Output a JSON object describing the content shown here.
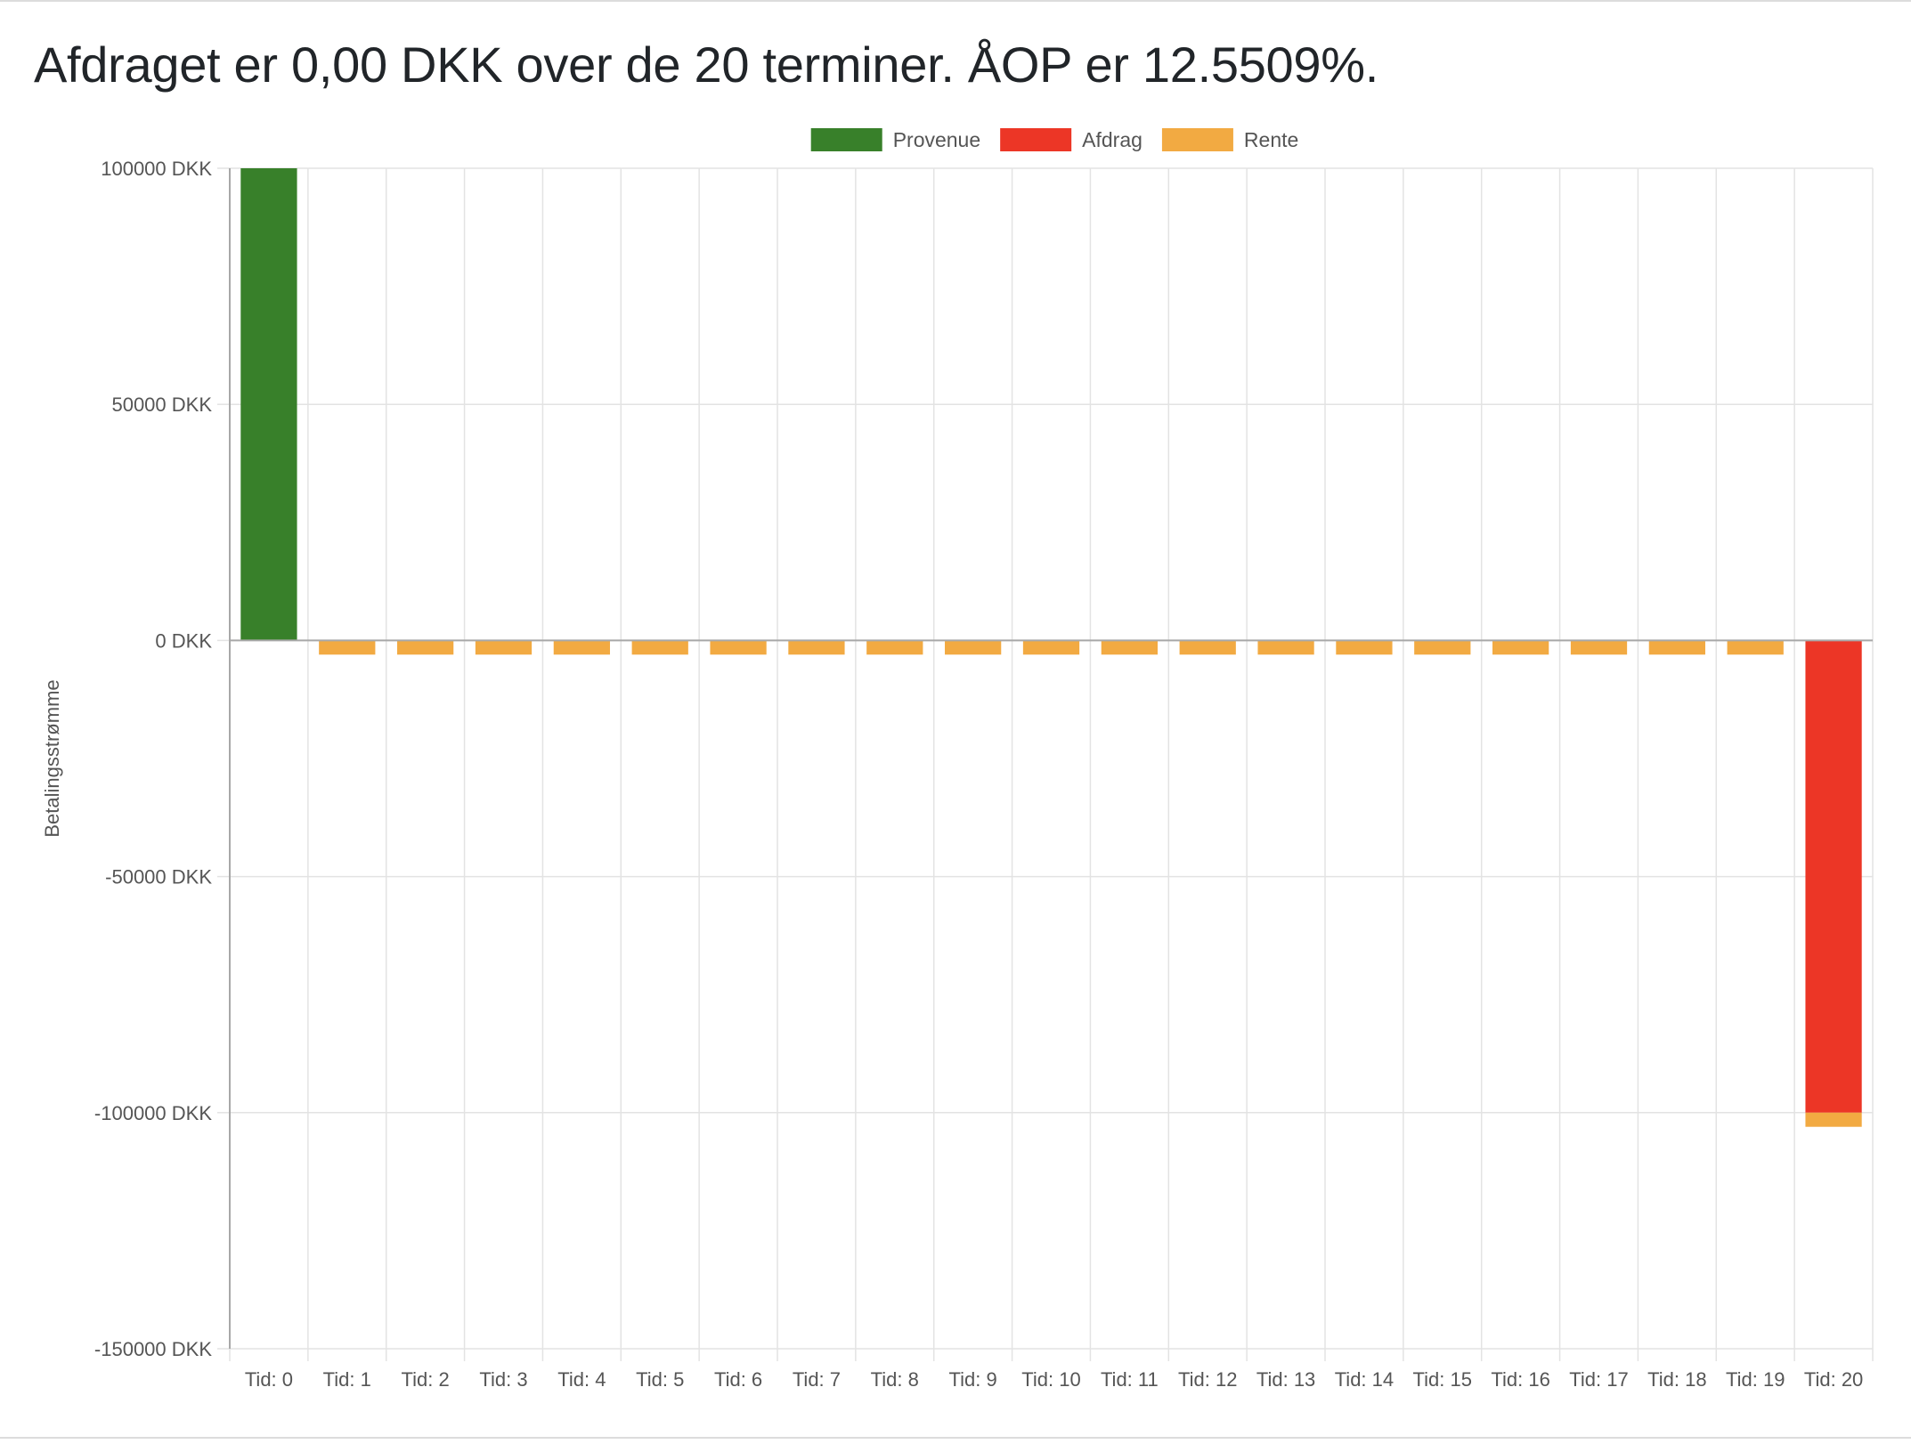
{
  "page": {
    "title": "Afdraget er 0,00 DKK over de 20 terminer. ÅOP er 12.5509%."
  },
  "chart_data": {
    "type": "bar",
    "stacked": true,
    "categories": [
      "Tid: 0",
      "Tid: 1",
      "Tid: 2",
      "Tid: 3",
      "Tid: 4",
      "Tid: 5",
      "Tid: 6",
      "Tid: 7",
      "Tid: 8",
      "Tid: 9",
      "Tid: 10",
      "Tid: 11",
      "Tid: 12",
      "Tid: 13",
      "Tid: 14",
      "Tid: 15",
      "Tid: 16",
      "Tid: 17",
      "Tid: 18",
      "Tid: 19",
      "Tid: 20"
    ],
    "series": [
      {
        "name": "Provenue",
        "color": "#38802a",
        "values": [
          100000,
          0,
          0,
          0,
          0,
          0,
          0,
          0,
          0,
          0,
          0,
          0,
          0,
          0,
          0,
          0,
          0,
          0,
          0,
          0,
          0
        ]
      },
      {
        "name": "Afdrag",
        "color": "#ec3626",
        "values": [
          0,
          0,
          0,
          0,
          0,
          0,
          0,
          0,
          0,
          0,
          0,
          0,
          0,
          0,
          0,
          0,
          0,
          0,
          0,
          0,
          -100000
        ]
      },
      {
        "name": "Rente",
        "color": "#f2aa42",
        "values": [
          0,
          -3000,
          -3000,
          -3000,
          -3000,
          -3000,
          -3000,
          -3000,
          -3000,
          -3000,
          -3000,
          -3000,
          -3000,
          -3000,
          -3000,
          -3000,
          -3000,
          -3000,
          -3000,
          -3000,
          -3000
        ]
      }
    ],
    "ylabel": "Betalingsstrømme",
    "xlabel": "",
    "ylim": [
      -150000,
      100000
    ],
    "yticks": [
      100000,
      50000,
      0,
      -50000,
      -100000,
      -150000
    ],
    "ytick_labels": [
      "100000 DKK",
      "50000 DKK",
      "0 DKK",
      "-50000 DKK",
      "-100000 DKK",
      "-150000 DKK"
    ],
    "grid": true,
    "legend_position": "top-center"
  }
}
